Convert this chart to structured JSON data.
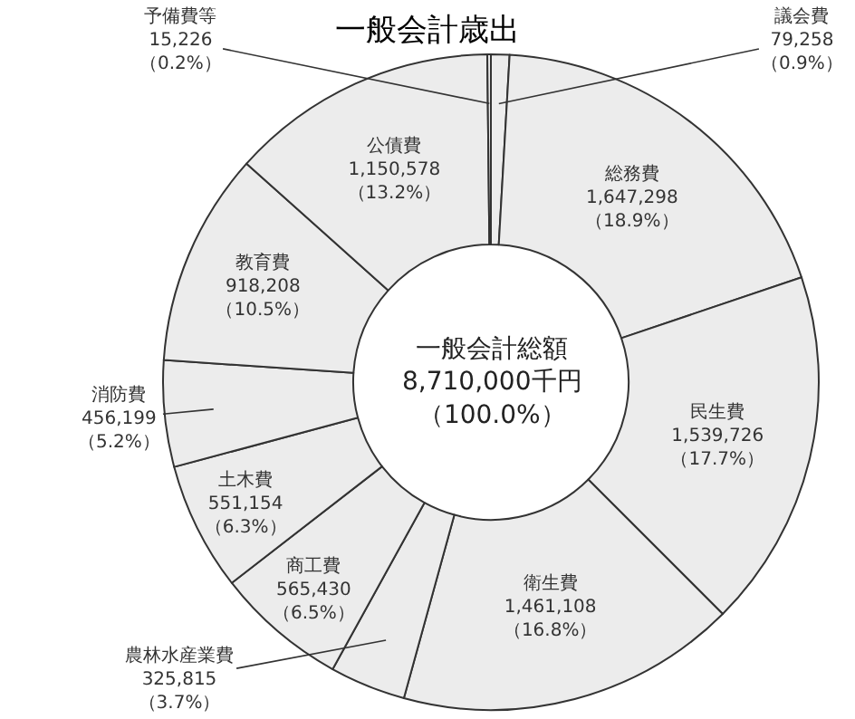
{
  "chart_data": {
    "type": "donut",
    "title": "一般会計歳出",
    "categories": [
      "議会費",
      "総務費",
      "民生費",
      "衛生費",
      "農林水産業費",
      "商工費",
      "土木費",
      "消防費",
      "教育費",
      "公債費",
      "予備費等"
    ],
    "values": [
      79258,
      1647298,
      1539726,
      1461108,
      325815,
      565430,
      551154,
      456199,
      918208,
      1150578,
      15226
    ],
    "value_labels": [
      "79,258（0.9%）",
      "1,647,298（18.9%）",
      "1,539,726（17.7%）",
      "1,461,108（16.8%）",
      "325,815（3.7%）",
      "565,430（6.5%）",
      "551,154（6.3%）",
      "456,199（5.2%）",
      "918,208（10.5%）",
      "1,150,578（13.2%）",
      "15,226（0.2%）"
    ],
    "colors": [
      "#ececec",
      "#ececec",
      "#ececec",
      "#ececec",
      "#ececec",
      "#ececec",
      "#ececec",
      "#ececec",
      "#ececec",
      "#ececec",
      "#ececec"
    ],
    "annotations": [
      "一般会計総額",
      "8,710,000千円",
      "（100.0%）"
    ],
    "legend": false
  }
}
